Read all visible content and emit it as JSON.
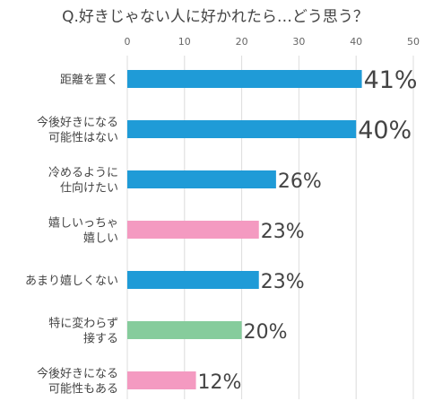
{
  "chart_data": {
    "type": "bar",
    "orientation": "horizontal",
    "title": "Q.好きじゃない人に好かれたら…どう思う？",
    "xlim": [
      0,
      50
    ],
    "xticks": [
      0,
      10,
      20,
      30,
      40,
      50
    ],
    "grid": true,
    "categories": [
      [
        "距離を置く"
      ],
      [
        "今後好きになる",
        "可能性はない"
      ],
      [
        "冷めるように",
        "仕向けたい"
      ],
      [
        "嬉しいっちゃ",
        "嬉しい"
      ],
      [
        "あまり嬉しくない"
      ],
      [
        "特に変わらず",
        "接する"
      ],
      [
        "今後好きになる",
        "可能性もある"
      ]
    ],
    "values": [
      41,
      40,
      26,
      23,
      23,
      20,
      12
    ],
    "data_labels": [
      "41%",
      "40%",
      "26%",
      "23%",
      "23%",
      "20%",
      "12%"
    ],
    "colors": [
      "#1f9bd7",
      "#1f9bd7",
      "#1f9bd7",
      "#f49ac1",
      "#1f9bd7",
      "#86cc9c",
      "#f49ac1"
    ]
  }
}
